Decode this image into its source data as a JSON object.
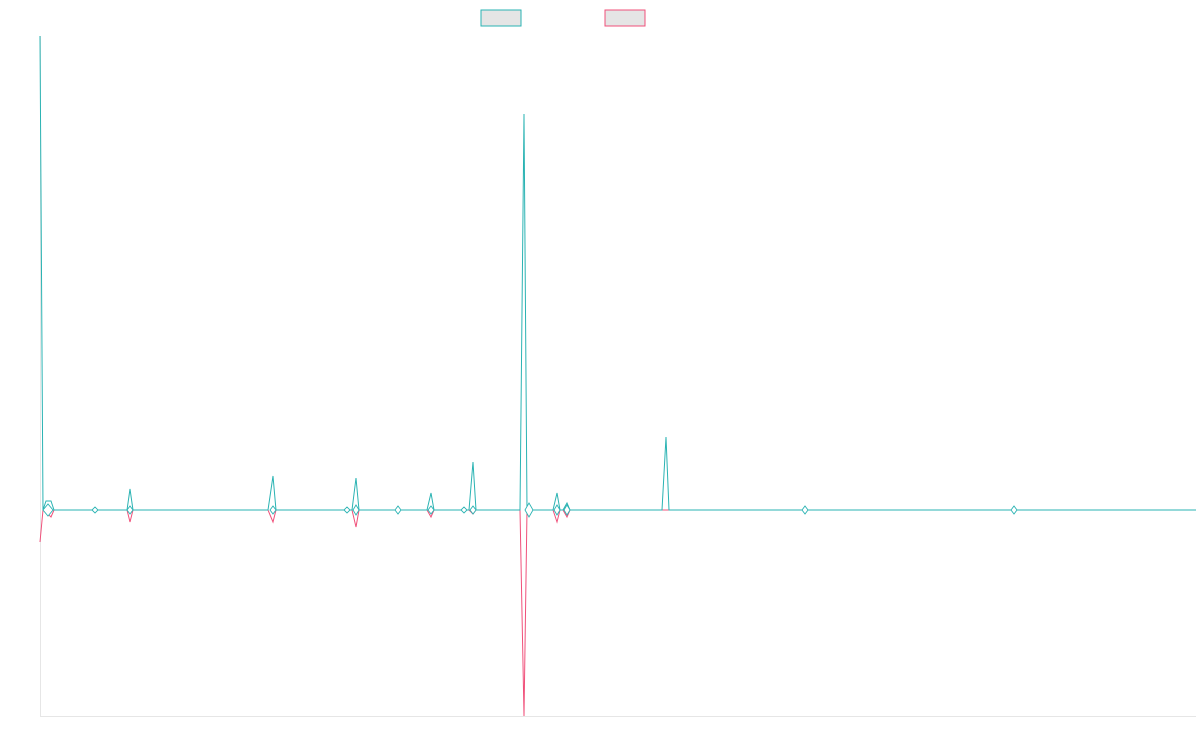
{
  "chart_data": {
    "type": "line",
    "title": "",
    "xlabel": "",
    "ylabel": "",
    "grid": false,
    "legend_position": "top-center",
    "x_points": 61,
    "y_range": [
      -1,
      1
    ],
    "series": [
      {
        "color": "#2ab3b3",
        "values": [
          0.96,
          0.04,
          0.04,
          0.0,
          0.0,
          0.0,
          0.0,
          0.0,
          0.0,
          0.0,
          0.0,
          0.05,
          0.0,
          0.0,
          0.0,
          0.0,
          0.0,
          0.0,
          0.0,
          0.0,
          0.0,
          0.0,
          0.0,
          0.0,
          0.0,
          0.0,
          0.0,
          0.0,
          0.0,
          0.0,
          0.0,
          0.0,
          0.0,
          0.0,
          0.0,
          0.0,
          0.0,
          0.0,
          0.0,
          0.0,
          0.0,
          0.0,
          0.0,
          0.0,
          0.0,
          0.0,
          0.0,
          0.0,
          0.0,
          0.0,
          0.0,
          0.0,
          0.0,
          0.0,
          0.0,
          0.0,
          0.0,
          0.0,
          0.0,
          0.0,
          0.0
        ]
      },
      {
        "color": "#f0507a",
        "values": [
          -0.08,
          0.0,
          -0.01,
          0.0,
          0.0,
          0.0,
          0.0,
          0.0,
          0.0,
          0.0,
          0.0,
          -0.03,
          0.0,
          0.0,
          0.0,
          0.0,
          0.0,
          0.0,
          0.0,
          0.0,
          0.0,
          0.0,
          0.0,
          0.0,
          0.0,
          0.0,
          0.0,
          0.0,
          0.0,
          0.0,
          0.0,
          0.0,
          0.0,
          0.0,
          0.0,
          0.0,
          0.0,
          0.0,
          0.0,
          0.0,
          0.0,
          0.0,
          0.0,
          0.0,
          0.0,
          0.0,
          0.0,
          0.0,
          0.0,
          0.0,
          0.0,
          0.0,
          0.0,
          0.0,
          0.0,
          0.0,
          0.0,
          0.0,
          0.0,
          0.0,
          0.0
        ]
      }
    ],
    "features": [
      {
        "x": 0.0,
        "teal": 0.96,
        "pink": -0.08
      },
      {
        "x": 1.0,
        "teal": 0.02,
        "pink": -0.01
      },
      {
        "x": 5.0,
        "teal": 0.0,
        "pink": 0.0
      },
      {
        "x": 9.5,
        "teal": 0.053,
        "pink": -0.03
      },
      {
        "x": 25.0,
        "teal": 0.085,
        "pink": -0.03
      },
      {
        "x": 33.5,
        "teal": 0.0,
        "pink": 0.0
      },
      {
        "x": 34.5,
        "teal": 0.08,
        "pink": -0.04
      },
      {
        "x": 38.0,
        "teal": 0.0,
        "pink": 0.0
      },
      {
        "x": 42.0,
        "teal": 0.04,
        "pink": -0.02
      },
      {
        "x": 45.5,
        "teal": 0.0,
        "pink": 0.0
      },
      {
        "x": 47.0,
        "teal": 0.12,
        "pink": -0.02
      },
      {
        "x": 52.0,
        "teal": 0.0,
        "pink": 0.0
      },
      {
        "x": 53.5,
        "teal": 0.765,
        "pink": -0.5
      },
      {
        "x": 54.5,
        "teal": 0.0,
        "pink": 0.0
      }
    ]
  }
}
